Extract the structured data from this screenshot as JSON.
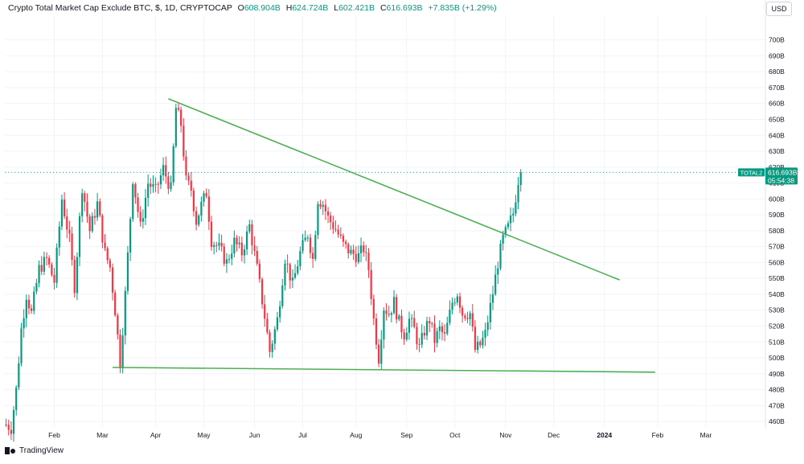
{
  "header": {
    "symbol": "Crypto Total Market Cap Exclude BTC, $, 1D, CRYPTOCAP",
    "o_label": "O",
    "o_value": "608.904B",
    "h_label": "H",
    "h_value": "624.724B",
    "l_label": "L",
    "l_value": "602.421B",
    "c_label": "C",
    "c_value": "616.693B",
    "change": "+7.835B (+1.29%)"
  },
  "currency_button": "USD",
  "footer": {
    "brand": "TradingView"
  },
  "colors": {
    "up": "#089981",
    "down": "#f23645",
    "trendline": "#4caf50",
    "price_line": "#22ab94",
    "grid": "#f0f3fa",
    "axis_text": "#131722"
  },
  "price_tag": {
    "symbol": "TOTAL2",
    "price": "616.693B",
    "countdown": "05:54:38"
  },
  "chart_data": {
    "type": "candlestick",
    "title": "",
    "y_unit": "B",
    "ylim": [
      456,
      715
    ],
    "y_ticks": [
      460,
      470,
      480,
      490,
      500,
      510,
      520,
      530,
      540,
      550,
      560,
      570,
      580,
      590,
      600,
      610,
      620,
      630,
      640,
      650,
      660,
      670,
      680,
      690,
      700
    ],
    "x_axis_bars": 300,
    "x_ticks": [
      {
        "bar": 19,
        "label": "Feb"
      },
      {
        "bar": 38,
        "label": "Mar"
      },
      {
        "bar": 59,
        "label": "Apr"
      },
      {
        "bar": 78,
        "label": "May"
      },
      {
        "bar": 98,
        "label": "Jun"
      },
      {
        "bar": 117,
        "label": "Jul"
      },
      {
        "bar": 138,
        "label": "Aug"
      },
      {
        "bar": 158,
        "label": "Sep"
      },
      {
        "bar": 177,
        "label": "Oct"
      },
      {
        "bar": 197,
        "label": "Nov"
      },
      {
        "bar": 216,
        "label": "Dec"
      },
      {
        "bar": 236,
        "label": "2024",
        "bold": true
      },
      {
        "bar": 257,
        "label": "Feb"
      },
      {
        "bar": 276,
        "label": "Mar"
      }
    ],
    "last_price": 616.693,
    "grid": true,
    "anchors": [
      [
        0,
        458
      ],
      [
        2,
        456
      ],
      [
        4,
        480
      ],
      [
        6,
        518
      ],
      [
        8,
        540
      ],
      [
        10,
        528
      ],
      [
        13,
        556
      ],
      [
        16,
        562
      ],
      [
        19,
        548
      ],
      [
        22,
        600
      ],
      [
        25,
        574
      ],
      [
        27,
        545
      ],
      [
        30,
        608
      ],
      [
        33,
        580
      ],
      [
        36,
        597
      ],
      [
        39,
        566
      ],
      [
        41,
        557
      ],
      [
        43,
        530
      ],
      [
        45,
        497
      ],
      [
        47,
        540
      ],
      [
        50,
        613
      ],
      [
        53,
        582
      ],
      [
        56,
        610
      ],
      [
        59,
        605
      ],
      [
        62,
        619
      ],
      [
        65,
        606
      ],
      [
        67,
        657
      ],
      [
        69,
        647
      ],
      [
        71,
        611
      ],
      [
        73,
        606
      ],
      [
        75,
        586
      ],
      [
        77,
        596
      ],
      [
        79,
        604
      ],
      [
        81,
        574
      ],
      [
        84,
        569
      ],
      [
        87,
        560
      ],
      [
        90,
        573
      ],
      [
        93,
        566
      ],
      [
        96,
        583
      ],
      [
        99,
        556
      ],
      [
        102,
        526
      ],
      [
        104,
        504
      ],
      [
        107,
        524
      ],
      [
        110,
        563
      ],
      [
        113,
        546
      ],
      [
        116,
        566
      ],
      [
        119,
        578
      ],
      [
        121,
        562
      ],
      [
        123,
        600
      ],
      [
        125,
        597
      ],
      [
        127,
        588
      ],
      [
        130,
        581
      ],
      [
        133,
        571
      ],
      [
        136,
        566
      ],
      [
        139,
        564
      ],
      [
        141,
        569
      ],
      [
        143,
        556
      ],
      [
        145,
        524
      ],
      [
        147,
        500
      ],
      [
        149,
        532
      ],
      [
        151,
        528
      ],
      [
        153,
        535
      ],
      [
        155,
        522
      ],
      [
        157,
        515
      ],
      [
        159,
        524
      ],
      [
        161,
        518
      ],
      [
        163,
        506
      ],
      [
        165,
        517
      ],
      [
        167,
        524
      ],
      [
        169,
        511
      ],
      [
        171,
        518
      ],
      [
        173,
        513
      ],
      [
        176,
        535
      ],
      [
        178,
        541
      ],
      [
        180,
        528
      ],
      [
        183,
        528
      ],
      [
        185,
        505
      ],
      [
        187,
        508
      ],
      [
        189,
        515
      ],
      [
        192,
        541
      ],
      [
        194,
        560
      ],
      [
        196,
        575
      ],
      [
        198,
        582
      ],
      [
        200,
        591
      ],
      [
        202,
        612
      ],
      [
        203,
        617
      ]
    ],
    "trendlines": [
      {
        "name": "descending-resistance",
        "points": [
          [
            64,
            663
          ],
          [
            242,
            549
          ]
        ]
      },
      {
        "name": "horizontal-support",
        "points": [
          [
            42,
            494
          ],
          [
            256,
            491
          ]
        ]
      }
    ]
  }
}
